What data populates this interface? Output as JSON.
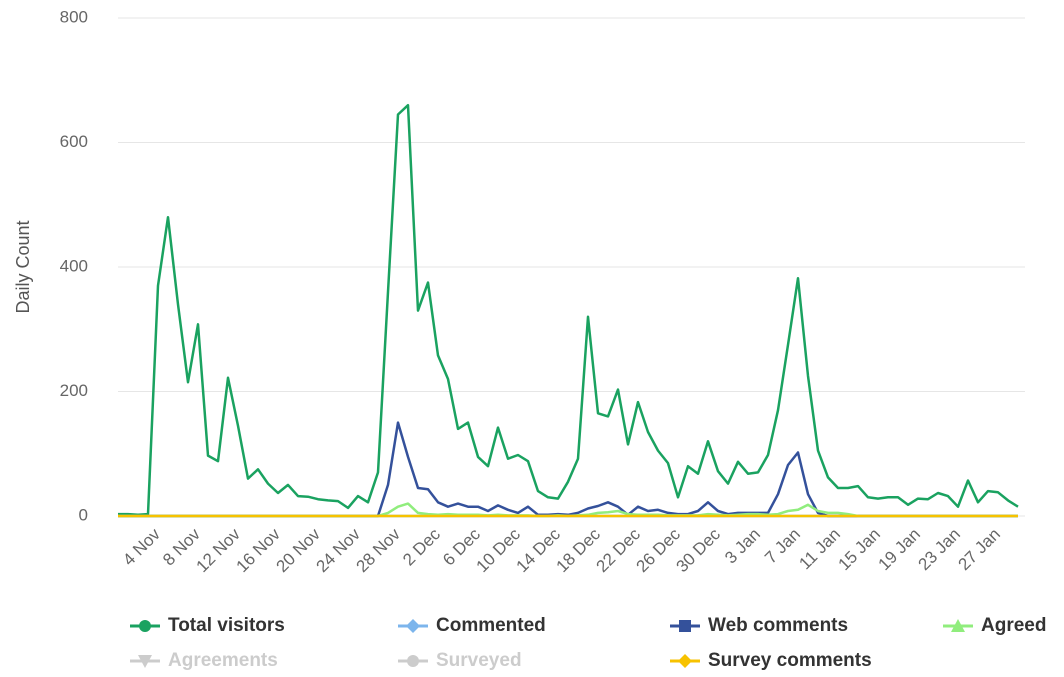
{
  "chart_data": {
    "type": "line",
    "ylabel": "Daily Count",
    "ylim": [
      0,
      800
    ],
    "yticks": [
      0,
      200,
      400,
      600,
      800
    ],
    "grid": true,
    "legend": "bottom",
    "categories": [
      null,
      null,
      null,
      null,
      "4 Nov",
      null,
      null,
      null,
      "8 Nov",
      null,
      null,
      null,
      "12 Nov",
      null,
      null,
      null,
      "16 Nov",
      null,
      null,
      null,
      "20 Nov",
      null,
      null,
      null,
      "24 Nov",
      null,
      null,
      null,
      "28 Nov",
      null,
      null,
      null,
      "2 Dec",
      null,
      null,
      null,
      "6 Dec",
      null,
      null,
      null,
      "10 Dec",
      null,
      null,
      null,
      "14 Dec",
      null,
      null,
      null,
      "18 Dec",
      null,
      null,
      null,
      "22 Dec",
      null,
      null,
      null,
      "26 Dec",
      null,
      null,
      null,
      "30 Dec",
      null,
      null,
      null,
      "3 Jan",
      null,
      null,
      null,
      "7 Jan",
      null,
      null,
      null,
      "11 Jan",
      null,
      null,
      null,
      "15 Jan",
      null,
      null,
      null,
      "19 Jan",
      null,
      null,
      null,
      "23 Jan",
      null,
      null,
      null,
      "27 Jan",
      null,
      null
    ],
    "series": [
      {
        "name": "Total visitors",
        "color": "#1aa260",
        "marker": "circle",
        "visible": true,
        "values": [
          3,
          3,
          2,
          3,
          370,
          480,
          340,
          215,
          308,
          97,
          88,
          222,
          145,
          60,
          75,
          52,
          37,
          50,
          32,
          31,
          27,
          25,
          24,
          13,
          32,
          22,
          70,
          360,
          645,
          660,
          330,
          375,
          258,
          220,
          140,
          150,
          95,
          80,
          142,
          92,
          98,
          88,
          40,
          30,
          28,
          55,
          92,
          320,
          165,
          160,
          203,
          115,
          183,
          135,
          105,
          85,
          30,
          80,
          68,
          120,
          72,
          52,
          87,
          68,
          70,
          98,
          170,
          275,
          382,
          225,
          105,
          62,
          45,
          45,
          48,
          30,
          28,
          30,
          30,
          18,
          28,
          27,
          37,
          32,
          15,
          57,
          22,
          40,
          38,
          25,
          15
        ]
      },
      {
        "name": "Commented",
        "color": "#7cb5ec",
        "marker": "diamond",
        "visible": true,
        "values": [
          0,
          0,
          0,
          0,
          0,
          0,
          0,
          0,
          0,
          0,
          0,
          0,
          0,
          0,
          0,
          0,
          0,
          0,
          0,
          0,
          0,
          0,
          0,
          0,
          0,
          0,
          0,
          0,
          0,
          0,
          0,
          0,
          0,
          0,
          0,
          0,
          0,
          0,
          0,
          0,
          0,
          0,
          0,
          0,
          0,
          0,
          0,
          0,
          0,
          0,
          0,
          0,
          0,
          0,
          0,
          0,
          0,
          0,
          0,
          0,
          0,
          0,
          0,
          0,
          0,
          0,
          0,
          0,
          0,
          0,
          0,
          0,
          0,
          0,
          0,
          0,
          0,
          0,
          0,
          0,
          0,
          0,
          0,
          0,
          0,
          0,
          0,
          0,
          0,
          0,
          0
        ]
      },
      {
        "name": "Web comments",
        "color": "#34519b",
        "marker": "square",
        "visible": true,
        "values": [
          0,
          0,
          0,
          0,
          0,
          0,
          0,
          0,
          0,
          0,
          0,
          0,
          0,
          0,
          0,
          0,
          0,
          0,
          0,
          0,
          0,
          0,
          0,
          0,
          0,
          0,
          0,
          50,
          150,
          95,
          45,
          43,
          22,
          15,
          20,
          15,
          15,
          8,
          17,
          10,
          5,
          15,
          2,
          2,
          3,
          2,
          5,
          12,
          16,
          22,
          15,
          2,
          15,
          8,
          10,
          5,
          3,
          3,
          8,
          22,
          8,
          3,
          5,
          5,
          5,
          5,
          35,
          82,
          102,
          35,
          5,
          0,
          0,
          0,
          0,
          0,
          0,
          0,
          0,
          0,
          0,
          0,
          0,
          0,
          0,
          0,
          0,
          0,
          0,
          0,
          0
        ]
      },
      {
        "name": "Agreed",
        "color": "#90ed7d",
        "marker": "triangle",
        "visible": true,
        "values": [
          0,
          0,
          0,
          0,
          0,
          0,
          0,
          0,
          0,
          0,
          0,
          0,
          0,
          0,
          0,
          0,
          0,
          0,
          0,
          0,
          0,
          0,
          0,
          0,
          0,
          0,
          0,
          5,
          15,
          20,
          5,
          3,
          2,
          3,
          2,
          2,
          2,
          1,
          2,
          1,
          1,
          1,
          0,
          0,
          1,
          0,
          1,
          2,
          5,
          6,
          8,
          3,
          2,
          2,
          2,
          1,
          1,
          1,
          1,
          3,
          2,
          1,
          2,
          3,
          3,
          2,
          3,
          8,
          10,
          18,
          8,
          5,
          5,
          3,
          0,
          0,
          0,
          0,
          0,
          0,
          0,
          0,
          0,
          0,
          0,
          0,
          0,
          0,
          0,
          0,
          0
        ]
      },
      {
        "name": "Agreements",
        "color": "#cccccc",
        "marker": "triangle-down",
        "visible": false
      },
      {
        "name": "Surveyed",
        "color": "#cccccc",
        "marker": "circle",
        "visible": false
      },
      {
        "name": "Survey comments",
        "color": "#f7c200",
        "marker": "diamond",
        "visible": true,
        "values": [
          0,
          0,
          0,
          0,
          0,
          0,
          0,
          0,
          0,
          0,
          0,
          0,
          0,
          0,
          0,
          0,
          0,
          0,
          0,
          0,
          0,
          0,
          0,
          0,
          0,
          0,
          0,
          0,
          0,
          0,
          0,
          0,
          0,
          0,
          0,
          0,
          0,
          0,
          0,
          0,
          0,
          0,
          0,
          0,
          0,
          0,
          0,
          0,
          0,
          0,
          0,
          0,
          0,
          0,
          0,
          0,
          0,
          0,
          0,
          0,
          0,
          0,
          0,
          0,
          0,
          0,
          0,
          0,
          0,
          0,
          0,
          0,
          0,
          0,
          0,
          0,
          0,
          0,
          0,
          0,
          0,
          0,
          0,
          0,
          0,
          0,
          0,
          0,
          0,
          0,
          0
        ]
      }
    ]
  }
}
